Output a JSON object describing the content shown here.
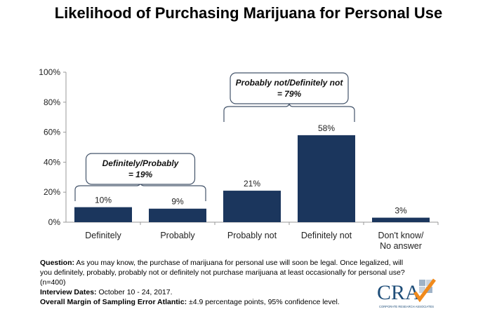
{
  "chart_data": {
    "type": "bar",
    "title": "Likelihood of Purchasing Marijuana for Personal Use",
    "categories": [
      "Definitely",
      "Probably",
      "Probably not",
      "Definitely not",
      "Don't know/\nNo answer"
    ],
    "values": [
      10,
      9,
      21,
      58,
      3
    ],
    "data_labels": [
      "10%",
      "9%",
      "21%",
      "58%",
      "3%"
    ],
    "ylim": [
      0,
      100
    ],
    "yticks": [
      "0%",
      "20%",
      "40%",
      "60%",
      "80%",
      "100%"
    ],
    "grid": false,
    "bar_color": "#1b365d",
    "annotations": [
      {
        "lines": [
          "Definitely/Probably",
          "= 19%"
        ],
        "groups": [
          0,
          1
        ]
      },
      {
        "lines": [
          "Probably not/Definitely not",
          "= 79%"
        ],
        "groups": [
          2,
          3
        ]
      }
    ]
  },
  "notes": {
    "question_label": "Question:",
    "question_text": " As you may know, the purchase of marijuana for personal use will soon be legal. Once legalized,  will you definitely, probably, probably not or definitely not purchase marijuana at least occasionally for personal use? (n=400)",
    "dates_label": "Interview Dates:",
    "dates_text": " October 10 - 24, 2017.",
    "margin_label": "Overall Margin of Sampling Error Atlantic:",
    "margin_text": " ±4.9 percentage points, 95% confidence level."
  },
  "logo": {
    "text": "CRA",
    "subtext": "CORPORATE RESEARCH ASSOCIATES"
  }
}
